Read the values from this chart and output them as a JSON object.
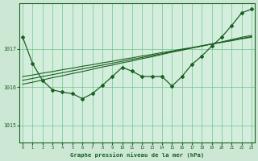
{
  "background_color": "#cce8d4",
  "plot_bg_color": "#d4eedd",
  "grid_color": "#5cb87a",
  "line_color": "#1a6020",
  "marker_color": "#1a6020",
  "xlabel": "Graphe pression niveau de la mer (hPa)",
  "ylim": [
    1014.55,
    1018.2
  ],
  "xlim": [
    -0.3,
    23.3
  ],
  "yticks": [
    1015,
    1016,
    1017
  ],
  "xticks": [
    0,
    1,
    2,
    3,
    4,
    5,
    6,
    7,
    8,
    9,
    10,
    11,
    12,
    13,
    14,
    15,
    16,
    17,
    18,
    19,
    20,
    21,
    22,
    23
  ],
  "series": {
    "main": [
      1017.32,
      1016.62,
      1016.18,
      1015.93,
      1015.87,
      1015.83,
      1015.7,
      1015.83,
      1016.05,
      1016.28,
      1016.52,
      1016.42,
      1016.28,
      1016.28,
      1016.28,
      1016.03,
      1016.28,
      1016.6,
      1016.82,
      1017.08,
      1017.32,
      1017.62,
      1017.95,
      1018.05
    ],
    "linear1": [
      1016.08,
      1016.13,
      1016.19,
      1016.25,
      1016.3,
      1016.36,
      1016.41,
      1016.47,
      1016.53,
      1016.58,
      1016.64,
      1016.69,
      1016.75,
      1016.8,
      1016.86,
      1016.92,
      1016.97,
      1017.03,
      1017.08,
      1017.14,
      1017.19,
      1017.25,
      1017.31,
      1017.36
    ],
    "linear2": [
      1016.18,
      1016.23,
      1016.28,
      1016.33,
      1016.38,
      1016.43,
      1016.48,
      1016.53,
      1016.58,
      1016.63,
      1016.68,
      1016.73,
      1016.78,
      1016.83,
      1016.88,
      1016.93,
      1016.98,
      1017.03,
      1017.08,
      1017.13,
      1017.18,
      1017.23,
      1017.28,
      1017.33
    ],
    "linear3": [
      1016.28,
      1016.32,
      1016.37,
      1016.41,
      1016.46,
      1016.5,
      1016.55,
      1016.59,
      1016.64,
      1016.68,
      1016.73,
      1016.77,
      1016.82,
      1016.86,
      1016.91,
      1016.95,
      1017.0,
      1017.04,
      1017.09,
      1017.13,
      1017.18,
      1017.22,
      1017.27,
      1017.31
    ]
  }
}
